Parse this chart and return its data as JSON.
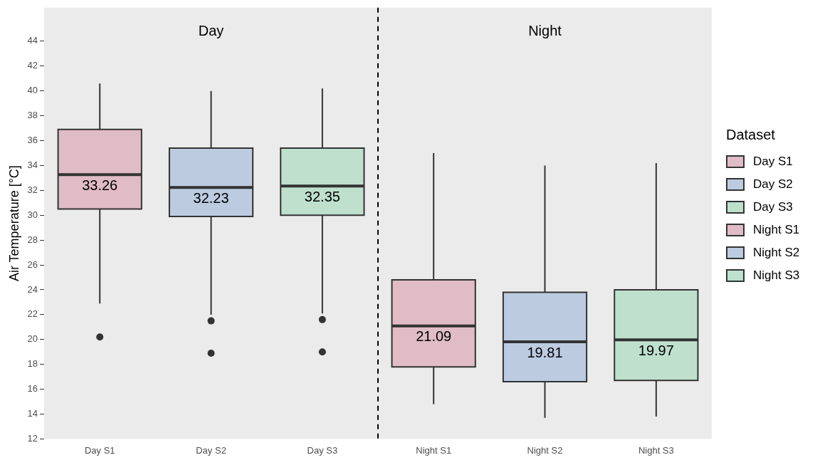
{
  "chart_data": {
    "type": "box",
    "ylabel": "Air Temperature [°C]",
    "legend_title": "Dataset",
    "legend": "right",
    "categories": [
      "Day S1",
      "Day S2",
      "Day S3",
      "Night S1",
      "Night S2",
      "Night S3"
    ],
    "series": [
      {
        "name": "Day S1",
        "color": "#e0bcc6",
        "boxes": [
          {
            "low": 22.9,
            "q1": 30.5,
            "median": 33.26,
            "q3": 36.9,
            "high": 40.6,
            "outliers": [
              20.2
            ]
          },
          null,
          null,
          null,
          null,
          null
        ],
        "value_labels": [
          "33.26",
          null,
          null,
          null,
          null,
          null
        ]
      },
      {
        "name": "Day S2",
        "color": "#bccbe0",
        "boxes": [
          null,
          {
            "low": 22.0,
            "q1": 29.9,
            "median": 32.23,
            "q3": 35.4,
            "high": 40.0,
            "outliers": [
              21.5,
              18.9
            ]
          },
          null,
          null,
          null,
          null
        ],
        "value_labels": [
          null,
          "32.23",
          null,
          null,
          null,
          null
        ]
      },
      {
        "name": "Day S3",
        "color": "#bee0cd",
        "boxes": [
          null,
          null,
          {
            "low": 22.1,
            "q1": 30.0,
            "median": 32.35,
            "q3": 35.4,
            "high": 40.2,
            "outliers": [
              21.6,
              19.0
            ]
          },
          null,
          null,
          null
        ],
        "value_labels": [
          null,
          null,
          "32.35",
          null,
          null,
          null
        ]
      },
      {
        "name": "Night S1",
        "color": "#e0bcc6",
        "boxes": [
          null,
          null,
          null,
          {
            "low": 14.8,
            "q1": 17.8,
            "median": 21.09,
            "q3": 24.8,
            "high": 35.0
          },
          null,
          null
        ],
        "value_labels": [
          null,
          null,
          null,
          "21.09",
          null,
          null
        ]
      },
      {
        "name": "Night S2",
        "color": "#bccbe0",
        "boxes": [
          null,
          null,
          null,
          null,
          {
            "low": 13.7,
            "q1": 16.6,
            "median": 19.81,
            "q3": 23.8,
            "high": 34.0
          },
          null
        ],
        "value_labels": [
          null,
          null,
          null,
          null,
          "19.81",
          null
        ]
      },
      {
        "name": "Night S3",
        "color": "#bee0cd",
        "boxes": [
          null,
          null,
          null,
          null,
          null,
          {
            "low": 13.8,
            "q1": 16.7,
            "median": 19.97,
            "q3": 24.0,
            "high": 34.2
          }
        ],
        "value_labels": [
          null,
          null,
          null,
          null,
          null,
          "19.97"
        ]
      }
    ],
    "annotations": [
      "Day",
      "Night"
    ],
    "ylim": [
      12,
      46.7
    ],
    "yticks": [
      12,
      14,
      16,
      18,
      20,
      22,
      24,
      26,
      28,
      30,
      32,
      34,
      36,
      38,
      40,
      42,
      44
    ],
    "grid": false
  }
}
